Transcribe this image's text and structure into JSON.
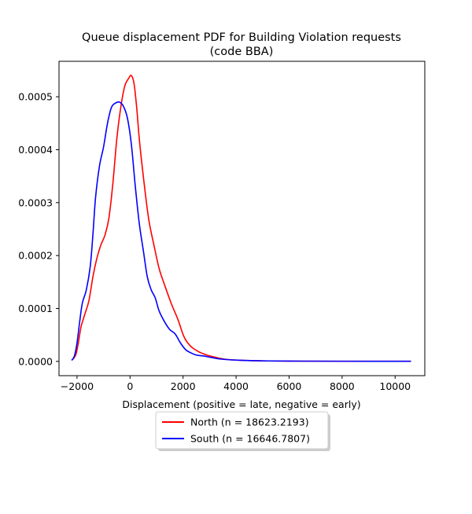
{
  "chart_data": {
    "type": "line",
    "title": "Queue displacement PDF for Building Violation  requests",
    "subtitle": "(code BBA)",
    "xlabel": "Displacement (positive = late, negative = early)",
    "ylabel": "",
    "xlim": [
      -2680,
      11120
    ],
    "ylim": [
      -2.7e-05,
      0.000567
    ],
    "x_ticks": [
      -2000,
      0,
      2000,
      4000,
      6000,
      8000,
      10000
    ],
    "x_tick_labels": [
      "−2000",
      "0",
      "2000",
      "4000",
      "6000",
      "8000",
      "10000"
    ],
    "y_ticks": [
      0,
      0.0001,
      0.0002,
      0.0003,
      0.0004,
      0.0005
    ],
    "y_tick_labels": [
      "0.0000",
      "0.0001",
      "0.0002",
      "0.0003",
      "0.0004",
      "0.0005"
    ],
    "grid": false,
    "legend": {
      "placement": "bottom-center",
      "entries": [
        "North (n = 18623.2193)",
        "South (n = 16646.7807)"
      ]
    },
    "series": [
      {
        "name": "North (n = 18623.2193)",
        "color": "#ff0000",
        "points": [
          [
            -2200,
            2e-06
          ],
          [
            -2050,
            1.2e-05
          ],
          [
            -1950,
            3.5e-05
          ],
          [
            -1850,
            6.5e-05
          ],
          [
            -1700,
            9e-05
          ],
          [
            -1550,
            0.000115
          ],
          [
            -1400,
            0.00016
          ],
          [
            -1250,
            0.000195
          ],
          [
            -1100,
            0.00022
          ],
          [
            -950,
            0.000238
          ],
          [
            -800,
            0.00027
          ],
          [
            -650,
            0.000335
          ],
          [
            -500,
            0.00042
          ],
          [
            -350,
            0.00048
          ],
          [
            -200,
            0.00052
          ],
          [
            -50,
            0.000535
          ],
          [
            50,
            0.00054
          ],
          [
            150,
            0.000525
          ],
          [
            250,
            0.00048
          ],
          [
            350,
            0.00042
          ],
          [
            500,
            0.00035
          ],
          [
            700,
            0.00027
          ],
          [
            900,
            0.00022
          ],
          [
            1100,
            0.000175
          ],
          [
            1300,
            0.000145
          ],
          [
            1550,
            0.00011
          ],
          [
            1800,
            8e-05
          ],
          [
            2050,
            4.5e-05
          ],
          [
            2300,
            2.8e-05
          ],
          [
            2600,
            1.8e-05
          ],
          [
            2900,
            1.2e-05
          ],
          [
            3200,
            8e-06
          ],
          [
            3600,
            4e-06
          ],
          [
            4200,
            2e-06
          ],
          [
            5000,
            1e-06
          ],
          [
            6000,
            5e-07
          ],
          [
            8000,
            3e-07
          ],
          [
            10600,
            2e-07
          ]
        ]
      },
      {
        "name": "South (n = 16646.7807)",
        "color": "#0000ff",
        "points": [
          [
            -2200,
            2e-06
          ],
          [
            -2100,
            1e-05
          ],
          [
            -2000,
            3.5e-05
          ],
          [
            -1900,
            7.5e-05
          ],
          [
            -1800,
            0.00011
          ],
          [
            -1650,
            0.000135
          ],
          [
            -1500,
            0.00018
          ],
          [
            -1400,
            0.00024
          ],
          [
            -1300,
            0.00031
          ],
          [
            -1150,
            0.00037
          ],
          [
            -1000,
            0.000405
          ],
          [
            -850,
            0.00045
          ],
          [
            -700,
            0.00048
          ],
          [
            -550,
            0.000488
          ],
          [
            -400,
            0.00049
          ],
          [
            -250,
            0.000482
          ],
          [
            -100,
            0.00046
          ],
          [
            50,
            0.00041
          ],
          [
            200,
            0.00033
          ],
          [
            350,
            0.00026
          ],
          [
            500,
            0.00021
          ],
          [
            650,
            0.00016
          ],
          [
            800,
            0.000135
          ],
          [
            950,
            0.00012
          ],
          [
            1100,
            9.5e-05
          ],
          [
            1300,
            7.5e-05
          ],
          [
            1500,
            6e-05
          ],
          [
            1700,
            5.2e-05
          ],
          [
            1900,
            3.5e-05
          ],
          [
            2100,
            2.2e-05
          ],
          [
            2300,
            1.6e-05
          ],
          [
            2500,
            1.2e-05
          ],
          [
            2800,
            1e-05
          ],
          [
            3100,
            7e-06
          ],
          [
            3500,
            4e-06
          ],
          [
            4200,
            2e-06
          ],
          [
            5000,
            1e-06
          ],
          [
            6000,
            5e-07
          ],
          [
            8000,
            3e-07
          ],
          [
            10600,
            2e-07
          ]
        ]
      }
    ]
  }
}
